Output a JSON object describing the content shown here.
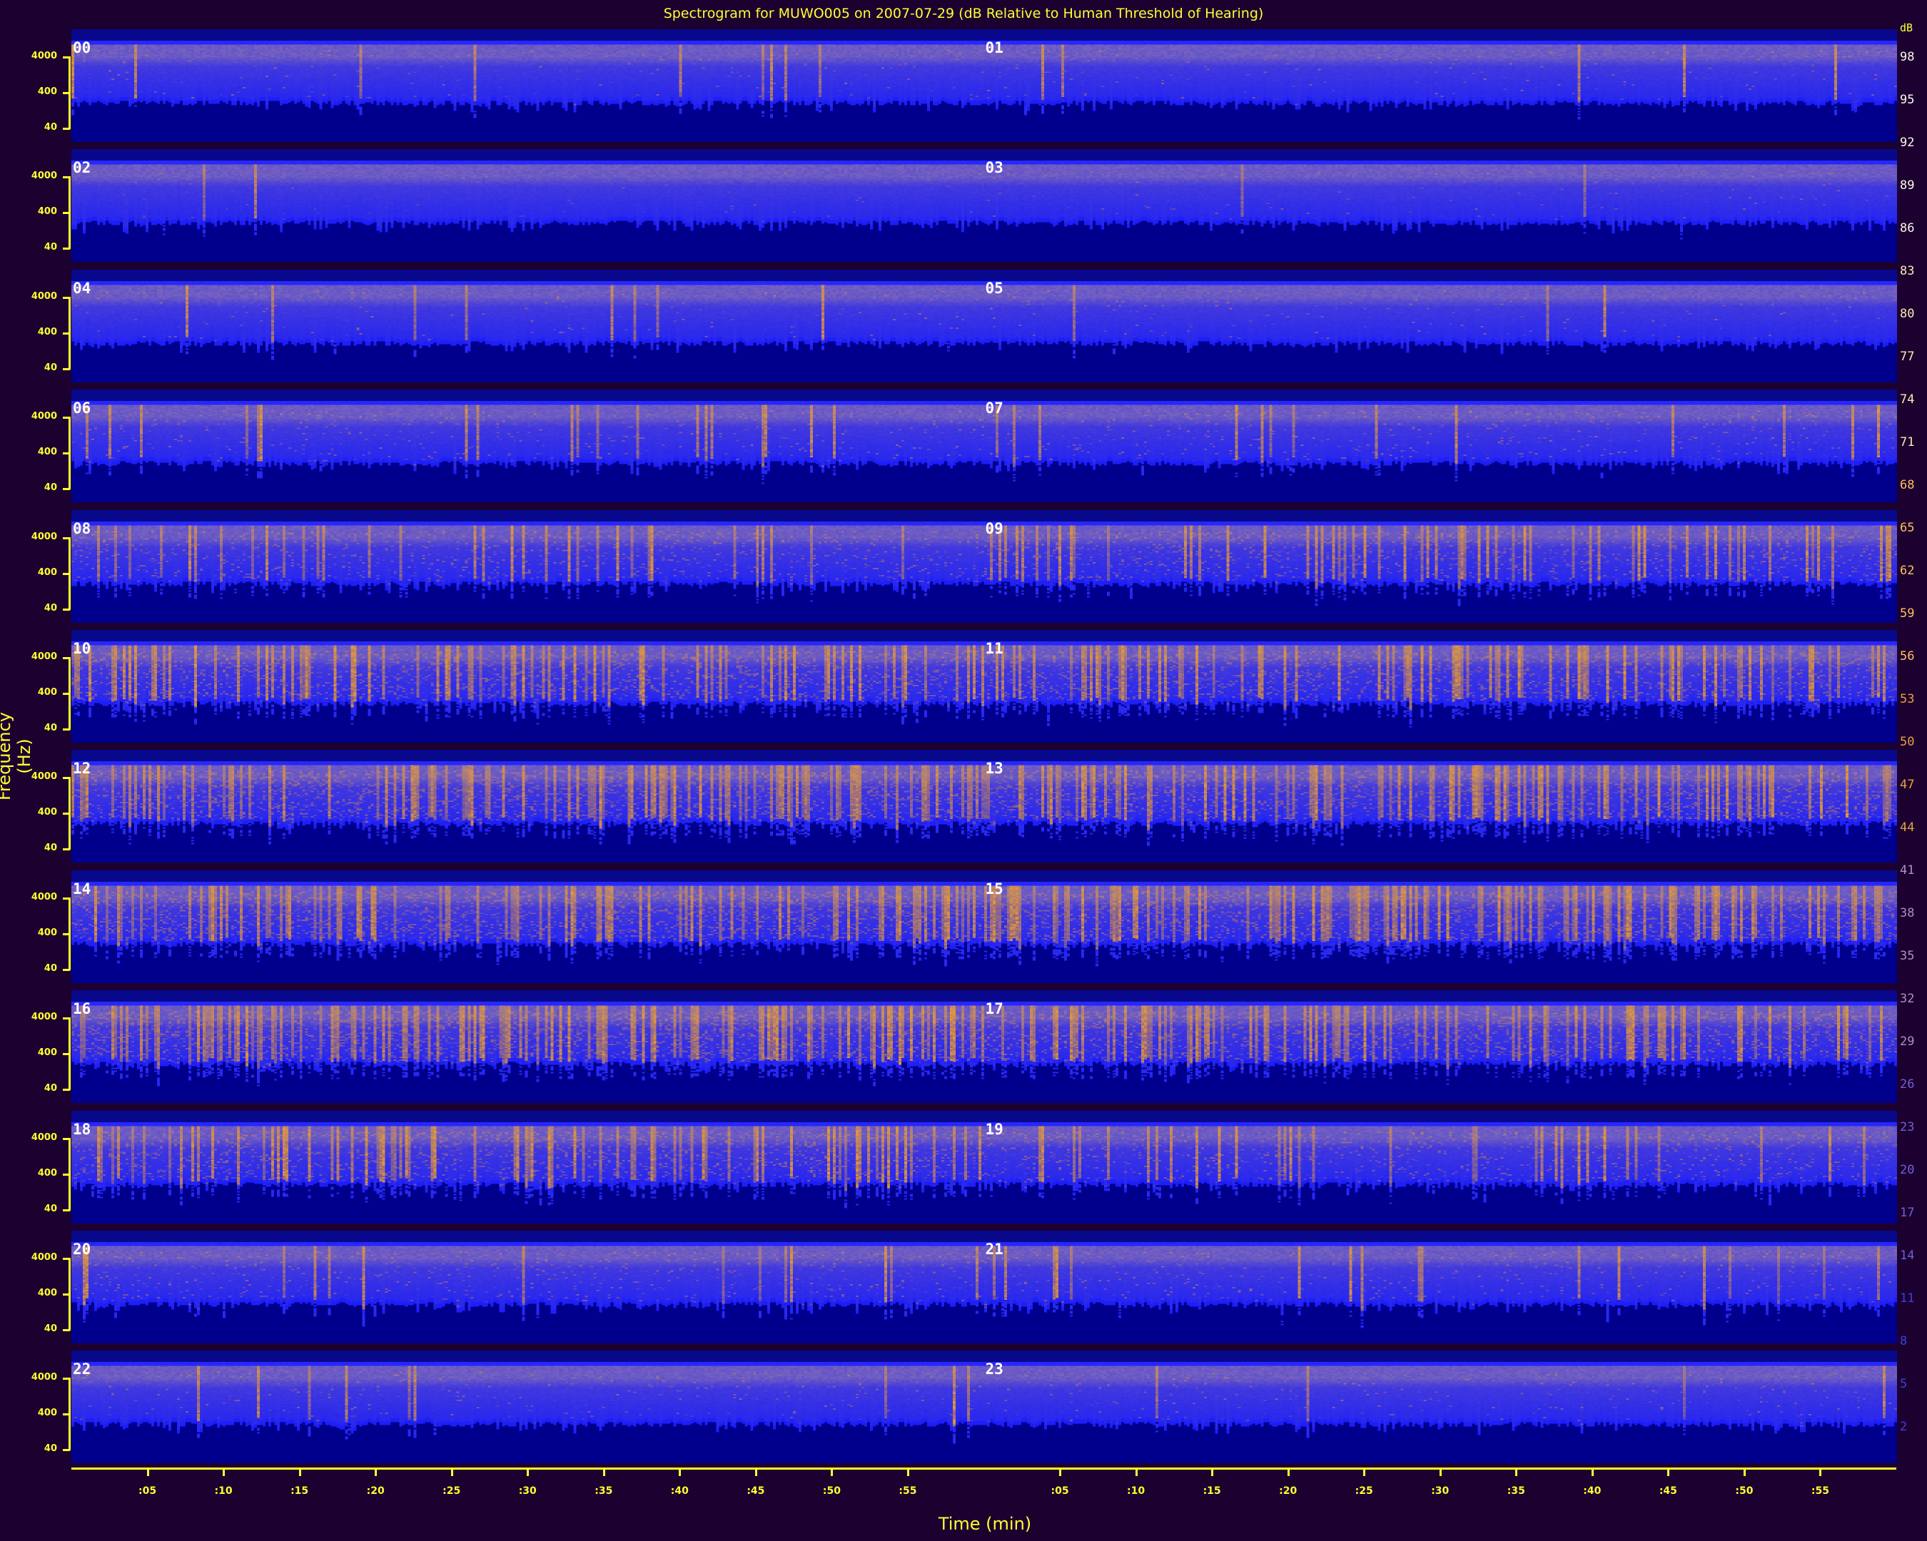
{
  "chart_data": {
    "type": "heatmap",
    "title": "Spectrogram for MUWO005 on 2007-07-29 (dB Relative to Human Threshold of Hearing)",
    "xlabel": "Time (min)",
    "ylabel": "Frequency (Hz)",
    "y_scale": "log",
    "y_ticks": [
      "4000",
      "400",
      "40"
    ],
    "x_ticks": [
      ":05",
      ":10",
      ":15",
      ":20",
      ":25",
      ":30",
      ":35",
      ":40",
      ":45",
      ":50",
      ":55"
    ],
    "hours": [
      "00",
      "01",
      "02",
      "03",
      "04",
      "05",
      "06",
      "07",
      "08",
      "09",
      "10",
      "11",
      "12",
      "13",
      "14",
      "15",
      "16",
      "17",
      "18",
      "19",
      "20",
      "21",
      "22",
      "23"
    ],
    "relative_activity": [
      0.05,
      0.05,
      0.02,
      0.03,
      0.04,
      0.05,
      0.12,
      0.15,
      0.35,
      0.5,
      0.8,
      0.75,
      0.9,
      0.85,
      0.9,
      0.85,
      0.95,
      0.8,
      0.6,
      0.35,
      0.2,
      0.15,
      0.08,
      0.08
    ],
    "colorbar": {
      "unit": "dB",
      "ticks": [
        "98",
        "95",
        "92",
        "89",
        "86",
        "83",
        "80",
        "77",
        "74",
        "71",
        "68",
        "65",
        "62",
        "59",
        "56",
        "53",
        "50",
        "47",
        "44",
        "41",
        "38",
        "35",
        "32",
        "29",
        "26",
        "23",
        "20",
        "17",
        "14",
        "11",
        "8",
        "5",
        "2"
      ]
    },
    "colors": {
      "background": "#1c0030",
      "axis": "#ffff30",
      "low": "#00008c",
      "mid": "#2828f0",
      "band": "#8070c0",
      "high": "#e89a30"
    }
  }
}
